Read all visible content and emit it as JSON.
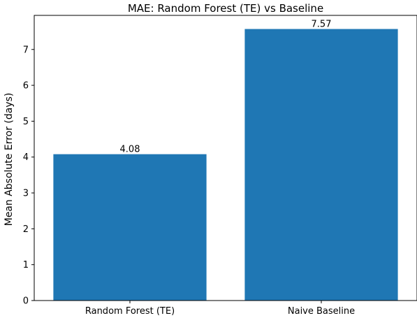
{
  "chart_data": {
    "type": "bar",
    "title": "MAE: Random Forest (TE) vs Baseline",
    "xlabel": "",
    "ylabel": "Mean Absolute Error (days)",
    "categories": [
      "Random Forest (TE)",
      "Naive Baseline"
    ],
    "values": [
      4.08,
      7.57
    ],
    "data_labels": [
      "4.08",
      "7.57"
    ],
    "yticks": [
      0,
      1,
      2,
      3,
      4,
      5,
      6,
      7
    ],
    "ytick_labels": [
      "0",
      "1",
      "2",
      "3",
      "4",
      "5",
      "6",
      "7"
    ],
    "ylim": [
      0,
      7.95
    ],
    "grid": false,
    "legend": "none",
    "bar_color": "#1f77b4"
  }
}
